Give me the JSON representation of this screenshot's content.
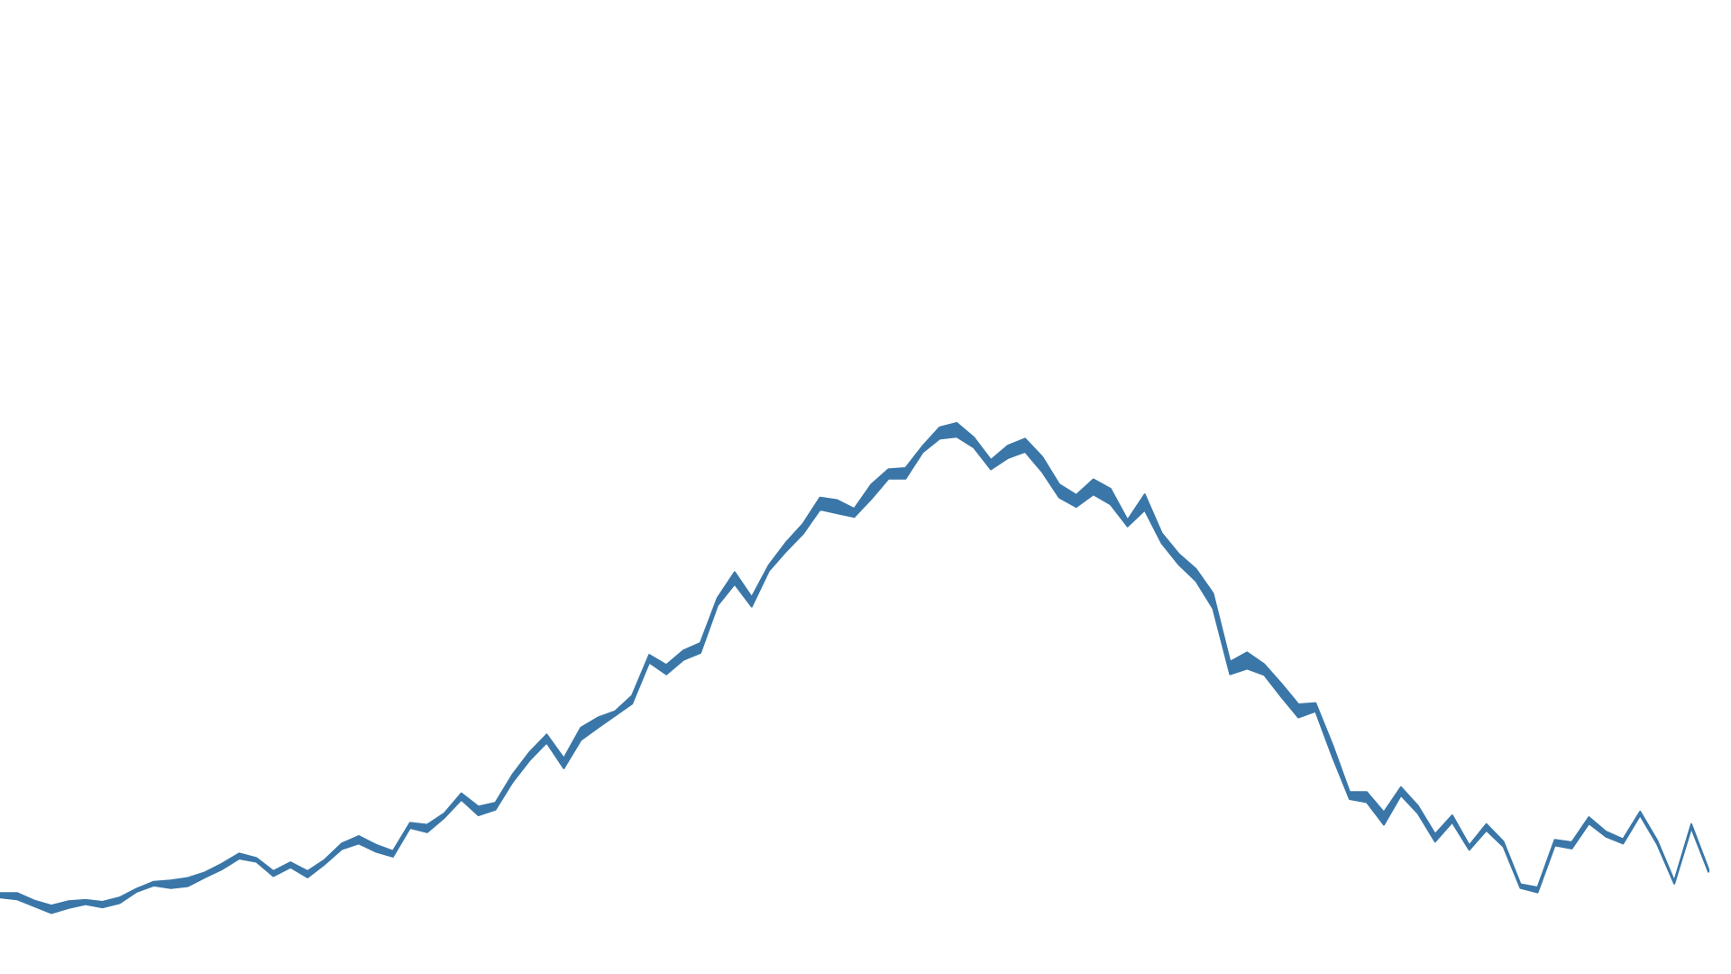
{
  "chart_data": {
    "type": "area",
    "title": "",
    "xlabel": "",
    "ylabel": "",
    "grid": false,
    "legend": "none",
    "color": "#3a77a8",
    "xlim": [
      0,
      1000
    ],
    "ylim": [
      0,
      1000
    ],
    "series": [
      {
        "x": [
          0,
          10,
          20,
          30,
          40,
          50,
          60,
          70,
          80,
          90,
          100,
          110,
          120,
          130,
          140,
          150,
          160,
          170,
          180,
          190,
          200,
          210,
          220,
          230,
          240,
          250,
          260,
          270,
          280,
          290,
          300,
          310,
          320,
          330,
          340,
          350,
          360,
          370,
          380,
          390,
          400,
          410,
          420,
          430,
          440,
          450,
          460,
          470,
          480,
          490,
          500,
          510,
          520,
          530,
          540,
          550,
          560,
          570,
          580,
          590,
          600,
          610,
          620,
          630,
          640,
          650,
          660,
          670,
          680,
          690,
          700,
          710,
          720,
          730,
          740,
          750,
          760,
          770,
          780,
          790,
          800,
          810,
          820,
          830,
          840,
          850,
          860,
          870,
          880,
          890,
          900,
          910,
          920,
          930,
          940,
          950,
          960,
          970,
          980,
          990,
          1000
        ],
        "lower": [
          79,
          76,
          65,
          54,
          62,
          68,
          63,
          70,
          88,
          98,
          94,
          97,
          111,
          124,
          141,
          136,
          113,
          127,
          111,
          132,
          156,
          165,
          152,
          144,
          190,
          183,
          206,
          235,
          210,
          219,
          263,
          298,
          326,
          285,
          330,
          350,
          369,
          388,
          454,
          435,
          458,
          469,
          545,
          579,
          543,
          600,
          631,
          659,
          698,
          692,
          686,
          715,
          747,
          747,
          789,
          811,
          814,
          797,
          762,
          780,
          790,
          758,
          717,
          702,
          722,
          706,
          671,
          697,
          644,
          610,
          584,
          540,
          435,
          444,
          434,
          399,
          366,
          376,
          303,
          236,
          231,
          195,
          242,
          213,
          168,
          199,
          155,
          186,
          160,
          94,
          87,
          162,
          157,
          197,
          176,
          165,
          210,
          164,
          101,
          190,
          120
        ],
        "upper": [
          86,
          86,
          74,
          66,
          73,
          75,
          72,
          79,
          93,
          104,
          106,
          110,
          119,
          133,
          149,
          142,
          121,
          135,
          121,
          139,
          165,
          177,
          163,
          153,
          198,
          195,
          213,
          245,
          224,
          230,
          275,
          311,
          339,
          301,
          350,
          366,
          376,
          401,
          466,
          450,
          473,
          485,
          557,
          598,
          558,
          609,
          645,
          675,
          717,
          713,
          699,
          738,
          762,
          764,
          799,
          829,
          836,
          813,
          777,
          800,
          811,
          782,
          738,
          721,
          746,
          731,
          681,
          722,
          660,
          627,
          603,
          564,
          455,
          470,
          451,
          420,
          387,
          389,
          322,
          247,
          247,
          215,
          255,
          225,
          180,
          210,
          162,
          196,
          168,
          100,
          95,
          171,
          167,
          207,
          184,
          172,
          216,
          170,
          105,
          196,
          124
        ]
      }
    ]
  }
}
